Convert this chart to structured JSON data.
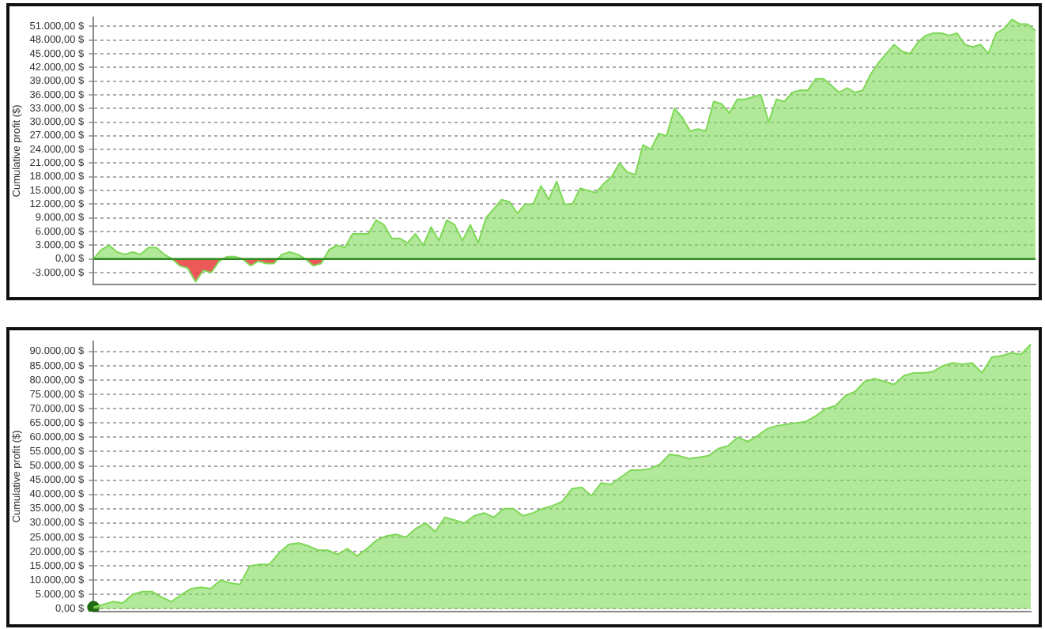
{
  "chart_data": [
    {
      "type": "area",
      "ylabel": "Cumulative profit ($)",
      "categories": [
        null,
        null,
        null,
        null,
        null,
        null,
        null,
        null,
        null,
        null,
        null,
        null,
        null,
        null,
        null,
        null,
        null,
        null,
        null,
        null,
        null,
        null,
        null,
        null,
        null,
        null,
        null,
        null,
        null,
        null,
        null,
        null,
        null,
        null,
        null,
        null,
        null,
        null,
        null,
        null,
        null,
        null,
        null,
        null,
        null,
        null,
        null,
        null,
        null,
        null,
        null,
        null,
        null,
        null,
        null,
        null,
        null,
        null,
        null,
        null,
        null,
        null,
        null,
        null,
        null,
        null,
        null,
        null,
        null,
        null,
        null,
        null,
        null,
        null,
        null,
        null,
        null,
        null,
        null,
        null,
        null,
        null,
        null,
        null,
        null,
        null,
        null,
        null,
        null,
        null,
        null,
        null,
        null,
        null,
        null,
        null,
        null,
        null,
        null,
        null,
        null,
        null,
        null,
        null,
        null,
        null,
        null,
        null,
        null,
        null,
        null,
        null,
        null,
        null,
        null,
        null,
        null,
        null,
        null,
        null,
        null
      ],
      "series": [
        {
          "color": "#7ed957",
          "values": [
            0,
            2000,
            3000,
            1500,
            1000,
            1500,
            1000,
            2500,
            2500,
            1000,
            0,
            -1500,
            -2000,
            -5000,
            -2500,
            -3000,
            -500,
            500,
            500,
            0,
            -1500,
            -500,
            -1000,
            -1000,
            1000,
            1500,
            1000,
            0,
            -1500,
            -1000,
            2000,
            3000,
            2500,
            5500,
            5500,
            5500,
            8500,
            7500,
            4500,
            4500,
            3500,
            5500,
            3000,
            7000,
            4000,
            8500,
            7500,
            4000,
            7500,
            3500,
            9000,
            11000,
            13000,
            12500,
            10000,
            12000,
            12000,
            16000,
            13000,
            17000,
            12000,
            12000,
            15500,
            15000,
            14500,
            16500,
            18000,
            21000,
            19000,
            18500,
            25000,
            24000,
            27500,
            27000,
            33000,
            31000,
            28000,
            28500,
            28000,
            34500,
            34000,
            32000,
            35000,
            35000,
            35500,
            36000,
            30000,
            35000,
            34500,
            36500,
            37000,
            37000,
            39500,
            39500,
            38000,
            36500,
            37500,
            36500,
            37000,
            40500,
            43000,
            45000,
            47000,
            45500,
            45000,
            47500,
            49000,
            49500,
            49500,
            49000,
            49500,
            47000,
            46500,
            47000,
            45000,
            49500,
            50500,
            52500,
            51500,
            51500,
            50000
          ],
          "colors": [
            "#7ed957",
            "#7ed957",
            "#7ed957",
            "#7ed957",
            "#7ed957",
            "#7ed957",
            "#7ed957",
            "#7ed957",
            "#7ed957",
            "#7ed957",
            "#7ed957",
            "#e83c3c",
            "#e83c3c",
            "#e83c3c",
            "#e83c3c",
            "#e83c3c",
            "#e83c3c",
            "#7ed957",
            "#7ed957",
            "#7ed957",
            "#e83c3c",
            "#e83c3c",
            "#e83c3c",
            "#e83c3c",
            "#7ed957",
            "#7ed957",
            "#7ed957",
            "#7ed957",
            "#e83c3c",
            "#e83c3c",
            "#7ed957",
            "#7ed957",
            "#7ed957",
            "#7ed957",
            "#7ed957",
            "#7ed957",
            "#7ed957",
            "#7ed957",
            "#7ed957",
            "#7ed957",
            "#7ed957",
            "#7ed957",
            "#7ed957",
            "#7ed957",
            "#7ed957",
            "#7ed957",
            "#7ed957",
            "#7ed957",
            "#7ed957",
            "#7ed957",
            "#7ed957",
            "#7ed957",
            "#7ed957",
            "#7ed957",
            "#7ed957",
            "#7ed957",
            "#7ed957",
            "#7ed957",
            "#7ed957",
            "#7ed957",
            "#7ed957",
            "#7ed957",
            "#7ed957",
            "#7ed957",
            "#7ed957",
            "#7ed957",
            "#7ed957",
            "#7ed957",
            "#7ed957",
            "#7ed957",
            "#7ed957",
            "#7ed957",
            "#7ed957",
            "#7ed957",
            "#7ed957",
            "#7ed957",
            "#7ed957",
            "#7ed957",
            "#7ed957",
            "#7ed957",
            "#7ed957",
            "#7ed957",
            "#7ed957",
            "#7ed957",
            "#7ed957",
            "#7ed957",
            "#7ed957",
            "#7ed957",
            "#7ed957",
            "#7ed957",
            "#7ed957",
            "#7ed957",
            "#7ed957",
            "#7ed957",
            "#7ed957",
            "#7ed957",
            "#7ed957",
            "#7ed957",
            "#7ed957",
            "#7ed957",
            "#7ed957",
            "#7ed957",
            "#7ed957",
            "#7ed957",
            "#7ed957",
            "#7ed957",
            "#7ed957",
            "#7ed957",
            "#7ed957",
            "#7ed957",
            "#7ed957",
            "#7ed957",
            "#7ed957",
            "#7ed957",
            "#7ed957",
            "#7ed957",
            "#7ed957",
            "#7ed957",
            "#7ed957",
            "#7ed957",
            "#7ed957"
          ]
        }
      ],
      "ylim": [
        -5600,
        53000
      ],
      "yticks": [
        {
          "value": -3000,
          "label": "-3.000,00 $"
        },
        {
          "value": 0,
          "label": "0,00 $"
        },
        {
          "value": 3000,
          "label": "3.000,00 $"
        },
        {
          "value": 6000,
          "label": "6.000,00 $"
        },
        {
          "value": 9000,
          "label": "9.000,00 $"
        },
        {
          "value": 12000,
          "label": "12.000,00 $"
        },
        {
          "value": 15000,
          "label": "15.000,00 $"
        },
        {
          "value": 18000,
          "label": "18.000,00 $"
        },
        {
          "value": 21000,
          "label": "21.000,00 $"
        },
        {
          "value": 24000,
          "label": "24.000,00 $"
        },
        {
          "value": 27000,
          "label": "27.000,00 $"
        },
        {
          "value": 30000,
          "label": "30.000,00 $"
        },
        {
          "value": 33000,
          "label": "33.000,00 $"
        },
        {
          "value": 36000,
          "label": "36.000,00 $"
        },
        {
          "value": 39000,
          "label": "39.000,00 $"
        },
        {
          "value": 42000,
          "label": "42.000,00 $"
        },
        {
          "value": 45000,
          "label": "45.000,00 $"
        },
        {
          "value": 48000,
          "label": "48.000,00 $"
        },
        {
          "value": 51000,
          "label": "51.000,00 $"
        }
      ],
      "ref_lines": [
        {
          "axis": "y",
          "value": 0,
          "color": "#2e8b22"
        }
      ],
      "grid": "y",
      "tick_labels": "y",
      "line_style": "solid"
    },
    {
      "type": "area",
      "ylabel": "Cumulative profit ($)",
      "categories": [
        null,
        null,
        null,
        null,
        null,
        null,
        null,
        null,
        null,
        null,
        null,
        null,
        null,
        null,
        null,
        null,
        null,
        null,
        null,
        null,
        null,
        null,
        null,
        null,
        null,
        null,
        null,
        null,
        null,
        null,
        null,
        null,
        null,
        null,
        null,
        null,
        null,
        null,
        null,
        null,
        null,
        null,
        null,
        null,
        null,
        null,
        null,
        null,
        null,
        null,
        null,
        null,
        null,
        null,
        null,
        null,
        null,
        null,
        null,
        null,
        null,
        null,
        null,
        null,
        null,
        null,
        null,
        null,
        null,
        null,
        null,
        null,
        null,
        null,
        null,
        null,
        null,
        null,
        null,
        null,
        null,
        null,
        null,
        null,
        null,
        null,
        null,
        null,
        null,
        null,
        null,
        null,
        null,
        null,
        null,
        null,
        null
      ],
      "series": [
        {
          "color": "#7ed957",
          "values": [
            500,
            1500,
            2500,
            2000,
            5000,
            6000,
            6000,
            4000,
            2500,
            5000,
            7000,
            7500,
            7000,
            10000,
            9000,
            8500,
            15000,
            15500,
            15500,
            19500,
            22500,
            23000,
            22000,
            20500,
            20500,
            19000,
            21000,
            18500,
            21000,
            24000,
            25500,
            26000,
            25000,
            28000,
            30000,
            27000,
            32000,
            31000,
            30000,
            32500,
            33500,
            32000,
            35000,
            35000,
            32500,
            33500,
            35000,
            36000,
            37500,
            42000,
            42500,
            39500,
            44000,
            43500,
            46000,
            48500,
            48500,
            49000,
            50500,
            54000,
            53500,
            52500,
            53000,
            53500,
            56000,
            57000,
            60000,
            58500,
            60500,
            63000,
            64000,
            64500,
            65000,
            65500,
            67500,
            70000,
            71000,
            74500,
            76000,
            79500,
            80500,
            79500,
            78500,
            81500,
            82500,
            82500,
            83000,
            85000,
            86000,
            85500,
            86000,
            82500,
            88000,
            88500,
            89500,
            89000,
            92500
          ]
        },
        {
          "type": "scatter",
          "color": "#1f6b12",
          "marker": "circle",
          "values": [
            500,
            null,
            null,
            null,
            null,
            null,
            null,
            null,
            null,
            null,
            null,
            null,
            null,
            null,
            null,
            null,
            null,
            null,
            null,
            null,
            null,
            null,
            null,
            null,
            null,
            null,
            null,
            null,
            null,
            null,
            null,
            null,
            null,
            null,
            null,
            null,
            null,
            null,
            null,
            null,
            null,
            null,
            null,
            null,
            null,
            null,
            null,
            null,
            null,
            null,
            null,
            null,
            null,
            null,
            null,
            null,
            null,
            null,
            null,
            null,
            null,
            null,
            null,
            null,
            null,
            null,
            null,
            null,
            null,
            null,
            null,
            null,
            null,
            null,
            null,
            null,
            null,
            null,
            null,
            null,
            null,
            null,
            null,
            null,
            null,
            null,
            null,
            null,
            null,
            null,
            null,
            null,
            null,
            null,
            null,
            null,
            null
          ]
        }
      ],
      "ylim": [
        -1000,
        93600
      ],
      "yticks": [
        {
          "value": 0,
          "label": "0,00 $"
        },
        {
          "value": 5000,
          "label": "5.000,00 $"
        },
        {
          "value": 10000,
          "label": "10.000,00 $"
        },
        {
          "value": 15000,
          "label": "15.000,00 $"
        },
        {
          "value": 20000,
          "label": "20.000,00 $"
        },
        {
          "value": 25000,
          "label": "25.000,00 $"
        },
        {
          "value": 30000,
          "label": "30.000,00 $"
        },
        {
          "value": 35000,
          "label": "35.000,00 $"
        },
        {
          "value": 40000,
          "label": "40.000,00 $"
        },
        {
          "value": 45000,
          "label": "45.000,00 $"
        },
        {
          "value": 50000,
          "label": "50.000,00 $"
        },
        {
          "value": 55000,
          "label": "55.000,00 $"
        },
        {
          "value": 60000,
          "label": "60.000,00 $"
        },
        {
          "value": 65000,
          "label": "65.000,00 $"
        },
        {
          "value": 70000,
          "label": "70.000,00 $"
        },
        {
          "value": 75000,
          "label": "75.000,00 $"
        },
        {
          "value": 80000,
          "label": "80.000,00 $"
        },
        {
          "value": 85000,
          "label": "85.000,00 $"
        },
        {
          "value": 90000,
          "label": "90.000,00 $"
        }
      ],
      "grid": "y",
      "tick_labels": "y",
      "line_style": "solid"
    }
  ]
}
